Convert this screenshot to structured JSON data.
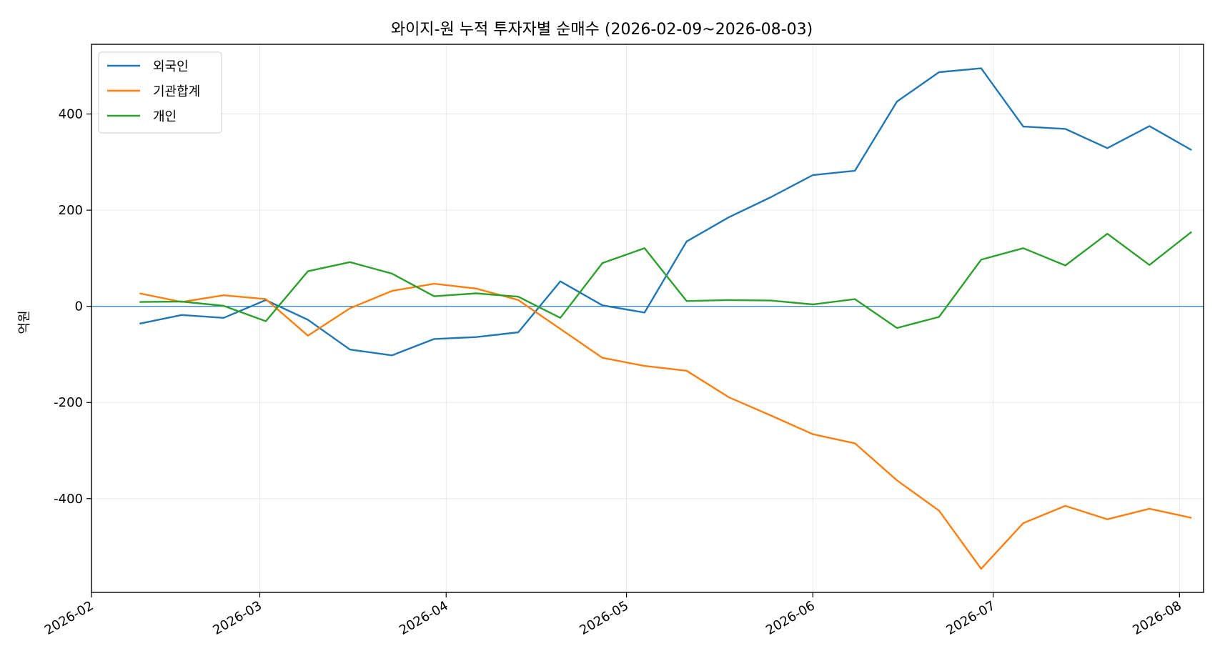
{
  "chart_data": {
    "type": "line",
    "title": "와이지-원 누적 투자자별 순매수 (2026-02-09~2026-08-03)",
    "xlabel": "",
    "ylabel": "억원",
    "x_ticks": [
      "2026-02",
      "2026-03",
      "2026-04",
      "2026-05",
      "2026-06",
      "2026-07",
      "2026-08"
    ],
    "y_ticks": [
      -400,
      -200,
      0,
      200,
      400
    ],
    "y_tick_labels": [
      "-400",
      "-200",
      "0",
      "200",
      "400"
    ],
    "ylim": [
      -595,
      545
    ],
    "xlim": [
      "2026-02-01",
      "2026-08-05"
    ],
    "grid": true,
    "zero_line": true,
    "legend_position": "upper-left",
    "x": [
      "2026-02-09",
      "2026-02-16",
      "2026-02-23",
      "2026-03-02",
      "2026-03-09",
      "2026-03-16",
      "2026-03-23",
      "2026-03-30",
      "2026-04-06",
      "2026-04-13",
      "2026-04-20",
      "2026-04-27",
      "2026-05-04",
      "2026-05-11",
      "2026-05-18",
      "2026-05-25",
      "2026-06-01",
      "2026-06-08",
      "2026-06-15",
      "2026-06-22",
      "2026-06-29",
      "2026-07-06",
      "2026-07-13",
      "2026-07-20",
      "2026-07-27",
      "2026-08-03"
    ],
    "series": [
      {
        "name": "외국인",
        "color": "#1f77b4",
        "values": [
          -36,
          -18,
          -24,
          13,
          -28,
          -90,
          -102,
          -68,
          -64,
          -54,
          52,
          2,
          -13,
          135,
          185,
          227,
          273,
          282,
          426,
          487,
          495,
          374,
          369,
          329,
          375,
          325
        ]
      },
      {
        "name": "기관합계",
        "color": "#ff7f0e",
        "values": [
          27,
          9,
          23,
          15,
          -61,
          -4,
          32,
          47,
          37,
          13,
          -47,
          -107,
          -124,
          -134,
          -189,
          -227,
          -266,
          -285,
          -362,
          -425,
          -546,
          -451,
          -415,
          -443,
          -421,
          -440
        ]
      },
      {
        "name": "개인",
        "color": "#2ca02c",
        "values": [
          9,
          10,
          1,
          -31,
          73,
          92,
          68,
          21,
          27,
          20,
          -24,
          90,
          121,
          11,
          13,
          12,
          4,
          15,
          -45,
          -22,
          97,
          121,
          85,
          151,
          86,
          155
        ]
      }
    ]
  }
}
